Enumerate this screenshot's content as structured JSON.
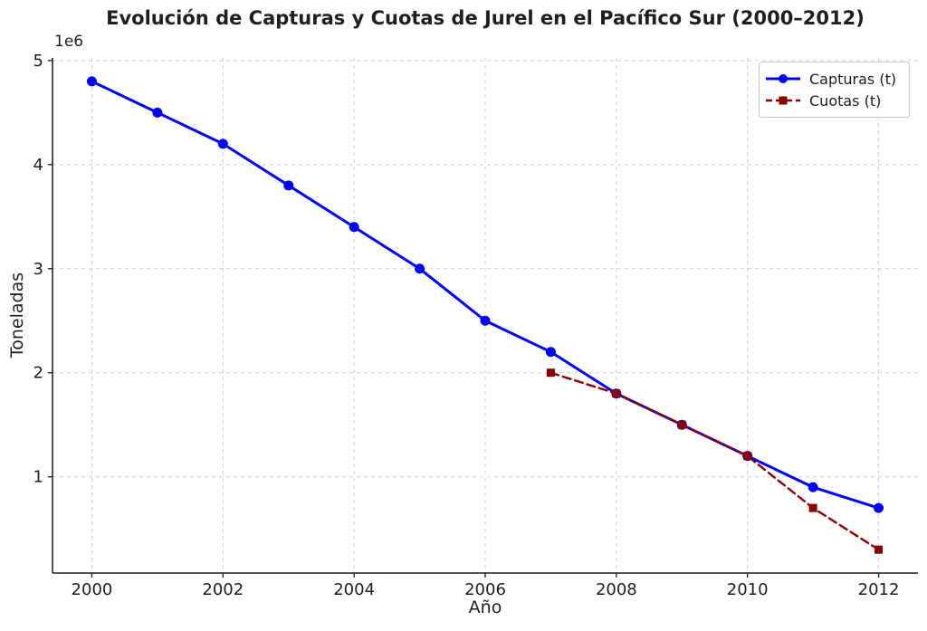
{
  "figure": {
    "background": "#ffffff",
    "text_color": "#1f1f1f",
    "grid_color": "#d0d0d0",
    "spine_color": "#1a1a1a"
  },
  "chart_data": {
    "type": "line",
    "title": "Evolución de Capturas y Cuotas de Jurel en el Pacífico Sur (2000–2012)",
    "xlabel": "Año",
    "ylabel": "Toneladas",
    "offset_text": "1e6",
    "xlim": [
      1999.4,
      2012.6
    ],
    "ylim": [
      75000,
      5025000
    ],
    "xticks": [
      2000,
      2002,
      2004,
      2006,
      2008,
      2010,
      2012
    ],
    "yticks": [
      1000000,
      2000000,
      3000000,
      4000000,
      5000000
    ],
    "ytick_labels": [
      "1",
      "2",
      "3",
      "4",
      "5"
    ],
    "grid": true,
    "legend_position": "upper right",
    "series": [
      {
        "name": "Capturas (t)",
        "slug": "capturas",
        "color": "#0000ff",
        "line_style": "solid",
        "marker": "circle",
        "x": [
          2000,
          2001,
          2002,
          2003,
          2004,
          2005,
          2006,
          2007,
          2008,
          2009,
          2010,
          2011,
          2012
        ],
        "values": [
          4800000,
          4500000,
          4200000,
          3800000,
          3400000,
          3000000,
          2500000,
          2200000,
          1800000,
          1500000,
          1200000,
          900000,
          700000
        ]
      },
      {
        "name": "Cuotas (t)",
        "slug": "cuotas",
        "color": "#8b0000",
        "line_style": "dashed",
        "marker": "square",
        "x": [
          2007,
          2008,
          2009,
          2010,
          2011,
          2012
        ],
        "values": [
          2000000,
          1800000,
          1500000,
          1200000,
          700000,
          300000
        ]
      }
    ]
  }
}
